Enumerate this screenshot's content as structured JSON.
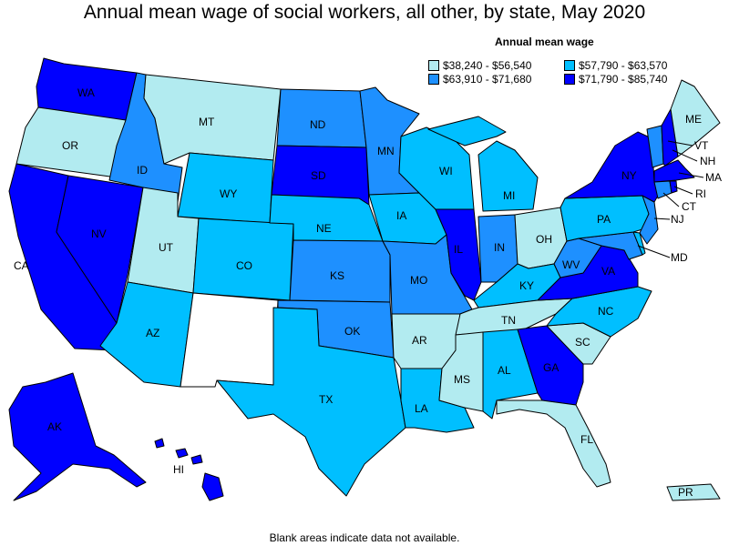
{
  "title": "Annual mean wage of social workers, all other, by state, May 2020",
  "footnote": "Blank areas indicate data not available.",
  "legend": {
    "title": "Annual mean wage",
    "items": [
      {
        "label": "$38,240 - $56,540",
        "color": "#b2ebf0"
      },
      {
        "label": "$57,790 - $63,570",
        "color": "#00bfff"
      },
      {
        "label": "$63,910 - $71,680",
        "color": "#1e90ff"
      },
      {
        "label": "$71,790 - $85,740",
        "color": "#0000ff"
      }
    ]
  },
  "colors": {
    "no_data": "#ffffff"
  },
  "states": {
    "WA": {
      "label": "WA",
      "tier": 3
    },
    "OR": {
      "label": "OR",
      "tier": 0
    },
    "CA": {
      "label": "CA",
      "tier": 3
    },
    "NV": {
      "label": "NV",
      "tier": 3
    },
    "ID": {
      "label": "ID",
      "tier": 2
    },
    "MT": {
      "label": "MT",
      "tier": 0
    },
    "WY": {
      "label": "WY",
      "tier": 1
    },
    "UT": {
      "label": "UT",
      "tier": 0
    },
    "AZ": {
      "label": "AZ",
      "tier": 1
    },
    "CO": {
      "label": "CO",
      "tier": 1
    },
    "NM": {
      "label": "",
      "tier": -1
    },
    "ND": {
      "label": "ND",
      "tier": 2
    },
    "SD": {
      "label": "SD",
      "tier": 3
    },
    "NE": {
      "label": "NE",
      "tier": 1
    },
    "KS": {
      "label": "KS",
      "tier": 2
    },
    "OK": {
      "label": "OK",
      "tier": 2
    },
    "TX": {
      "label": "TX",
      "tier": 1
    },
    "MN": {
      "label": "MN",
      "tier": 2
    },
    "IA": {
      "label": "IA",
      "tier": 1
    },
    "MO": {
      "label": "MO",
      "tier": 2
    },
    "AR": {
      "label": "AR",
      "tier": 0
    },
    "LA": {
      "label": "LA",
      "tier": 1
    },
    "WI": {
      "label": "WI",
      "tier": 1
    },
    "IL": {
      "label": "IL",
      "tier": 3
    },
    "MI": {
      "label": "MI",
      "tier": 1
    },
    "IN": {
      "label": "IN",
      "tier": 2
    },
    "OH": {
      "label": "OH",
      "tier": 0
    },
    "KY": {
      "label": "KY",
      "tier": 1
    },
    "TN": {
      "label": "TN",
      "tier": 0
    },
    "MS": {
      "label": "MS",
      "tier": 0
    },
    "AL": {
      "label": "AL",
      "tier": 1
    },
    "GA": {
      "label": "GA",
      "tier": 3
    },
    "FL": {
      "label": "FL",
      "tier": 0
    },
    "SC": {
      "label": "SC",
      "tier": 0
    },
    "NC": {
      "label": "NC",
      "tier": 1
    },
    "VA": {
      "label": "VA",
      "tier": 3
    },
    "WV": {
      "label": "WV",
      "tier": 2
    },
    "MD": {
      "label": "MD",
      "tier": 2
    },
    "DE": {
      "label": "",
      "tier": 1
    },
    "PA": {
      "label": "PA",
      "tier": 1
    },
    "NJ": {
      "label": "NJ",
      "tier": 2
    },
    "NY": {
      "label": "NY",
      "tier": 3
    },
    "CT": {
      "label": "CT",
      "tier": 2
    },
    "RI": {
      "label": "RI",
      "tier": 3
    },
    "MA": {
      "label": "MA",
      "tier": 3
    },
    "VT": {
      "label": "VT",
      "tier": 2
    },
    "NH": {
      "label": "NH",
      "tier": 3
    },
    "ME": {
      "label": "ME",
      "tier": 0
    },
    "AK": {
      "label": "AK",
      "tier": 3
    },
    "HI": {
      "label": "HI",
      "tier": 3
    },
    "PR": {
      "label": "PR",
      "tier": 0
    }
  }
}
